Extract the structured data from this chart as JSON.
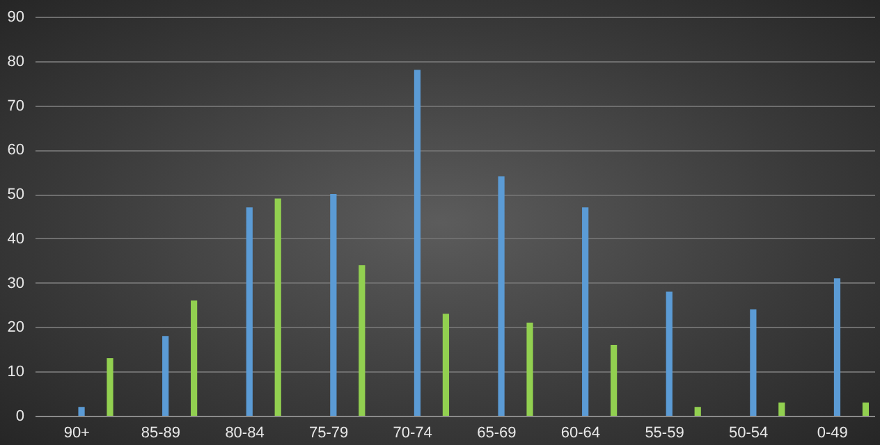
{
  "chart_data": {
    "type": "bar",
    "categories": [
      "90+",
      "85-89",
      "80-84",
      "75-79",
      "70-74",
      "65-69",
      "60-64",
      "55-59",
      "50-54",
      "0-49"
    ],
    "series": [
      {
        "color": "#5b9bd5",
        "values": [
          2,
          18,
          47,
          50,
          78,
          54,
          47,
          28,
          24,
          31
        ]
      },
      {
        "color": "#92d050",
        "values": [
          13,
          26,
          49,
          34,
          23,
          21,
          16,
          2,
          3,
          3
        ]
      }
    ],
    "ylim": [
      0,
      90
    ],
    "yticks": [
      0,
      10,
      20,
      30,
      40,
      50,
      60,
      70,
      80,
      90
    ],
    "grid": "y",
    "legend": false
  }
}
